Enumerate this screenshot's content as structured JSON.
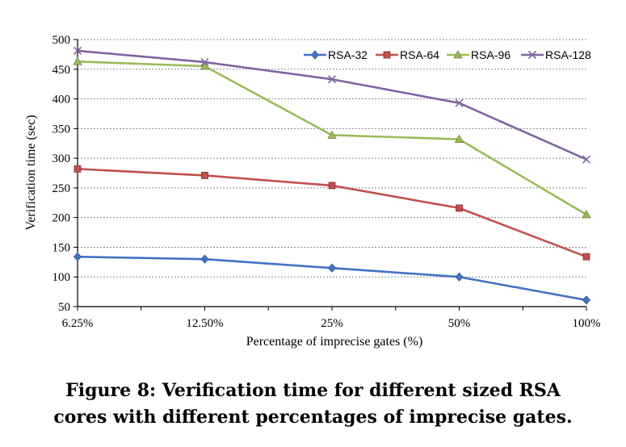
{
  "chart_data": {
    "type": "line",
    "title": "",
    "xlabel": "Percentage of imprecise gates (%)",
    "ylabel": "Verification time (sec)",
    "categories": [
      "6.25%",
      "12.50%",
      "25%",
      "50%",
      "100%"
    ],
    "ylim": [
      50,
      500
    ],
    "yticks": [
      50,
      100,
      150,
      200,
      250,
      300,
      350,
      400,
      450,
      500
    ],
    "grid": true,
    "legend_position": "top-right",
    "series": [
      {
        "name": "RSA-32",
        "color": "#4472C4",
        "marker": "diamond",
        "values": [
          134,
          130,
          115,
          100,
          61
        ]
      },
      {
        "name": "RSA-64",
        "color": "#C0504D",
        "marker": "square",
        "values": [
          282,
          271,
          254,
          216,
          134
        ]
      },
      {
        "name": "RSA-96",
        "color": "#9BBB59",
        "marker": "triangle",
        "values": [
          463,
          455,
          339,
          332,
          205
        ]
      },
      {
        "name": "RSA-128",
        "color": "#8064A2",
        "marker": "cross",
        "values": [
          481,
          462,
          433,
          393,
          298
        ]
      }
    ]
  },
  "caption": {
    "line1": "Figure 8:  Verification time for different sized RSA",
    "line2": "cores with different percentages of imprecise gates."
  }
}
